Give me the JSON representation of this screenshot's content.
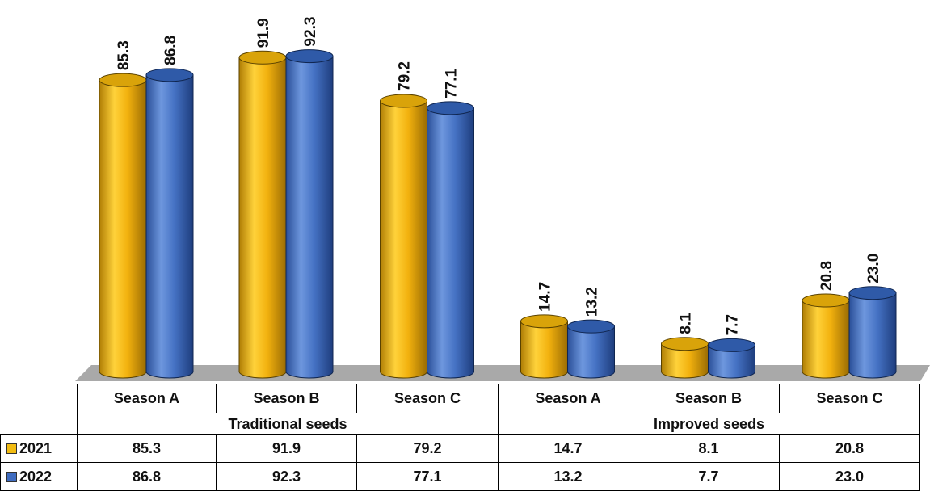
{
  "chart_data": {
    "type": "bar",
    "style": "3d-cylinder",
    "groups": [
      {
        "label": "Traditional seeds",
        "categories": [
          "Season A",
          "Season B",
          "Season C"
        ]
      },
      {
        "label": "Improved seeds",
        "categories": [
          "Season A",
          "Season B",
          "Season C"
        ]
      }
    ],
    "categories": [
      "Season A",
      "Season B",
      "Season C",
      "Season A",
      "Season B",
      "Season C"
    ],
    "series": [
      {
        "name": "2021",
        "color": "#F2BC12",
        "values": [
          85.3,
          91.9,
          79.2,
          14.7,
          8.1,
          20.8
        ],
        "labels": [
          "85.3",
          "91.9",
          "79.2",
          "14.7",
          "8.1",
          "20.8"
        ]
      },
      {
        "name": "2022",
        "color": "#3F6CC0",
        "values": [
          86.8,
          92.3,
          77.1,
          13.2,
          7.7,
          23.0
        ],
        "labels": [
          "86.8",
          "92.3",
          "77.1",
          "13.2",
          "7.7",
          "23.0"
        ]
      }
    ],
    "ylim": [
      0,
      100
    ],
    "grid": false,
    "data_labels": true,
    "legend": "in-table"
  }
}
